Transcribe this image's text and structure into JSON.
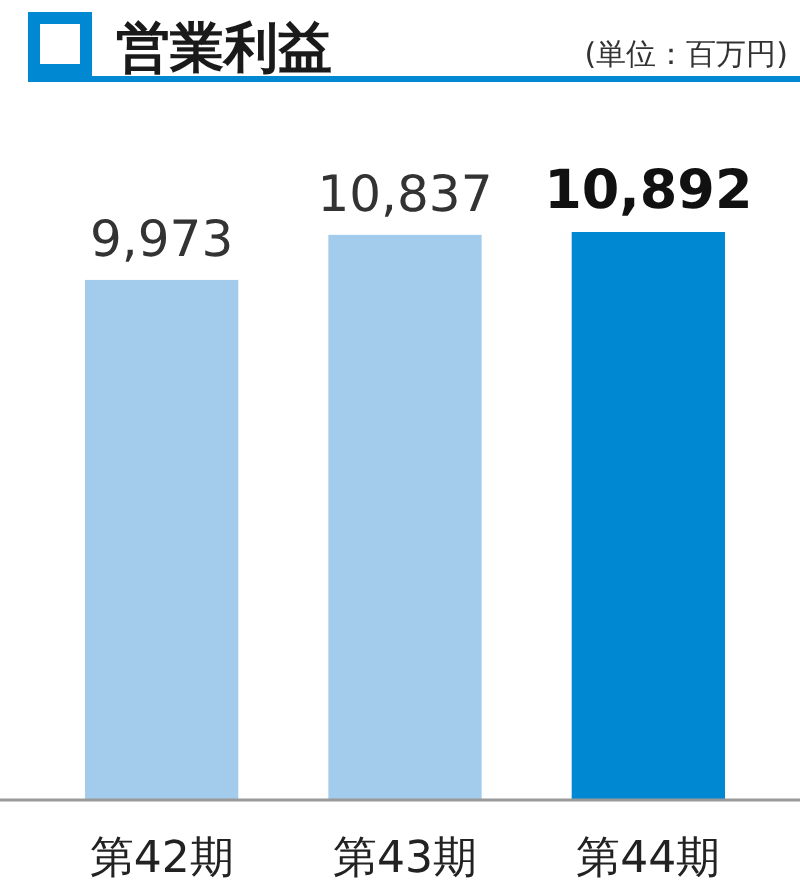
{
  "chart_data": {
    "type": "bar",
    "title": "営業利益",
    "subtitle": "(単位：百万円)",
    "categories": [
      "第42期",
      "第43期",
      "第44期"
    ],
    "values": [
      9973,
      10837,
      10892
    ],
    "colors": [
      "#a3cbeb",
      "#a3cbeb",
      "#0088d2"
    ],
    "value_labels": [
      "9,973",
      "10,837",
      "10,892"
    ]
  }
}
